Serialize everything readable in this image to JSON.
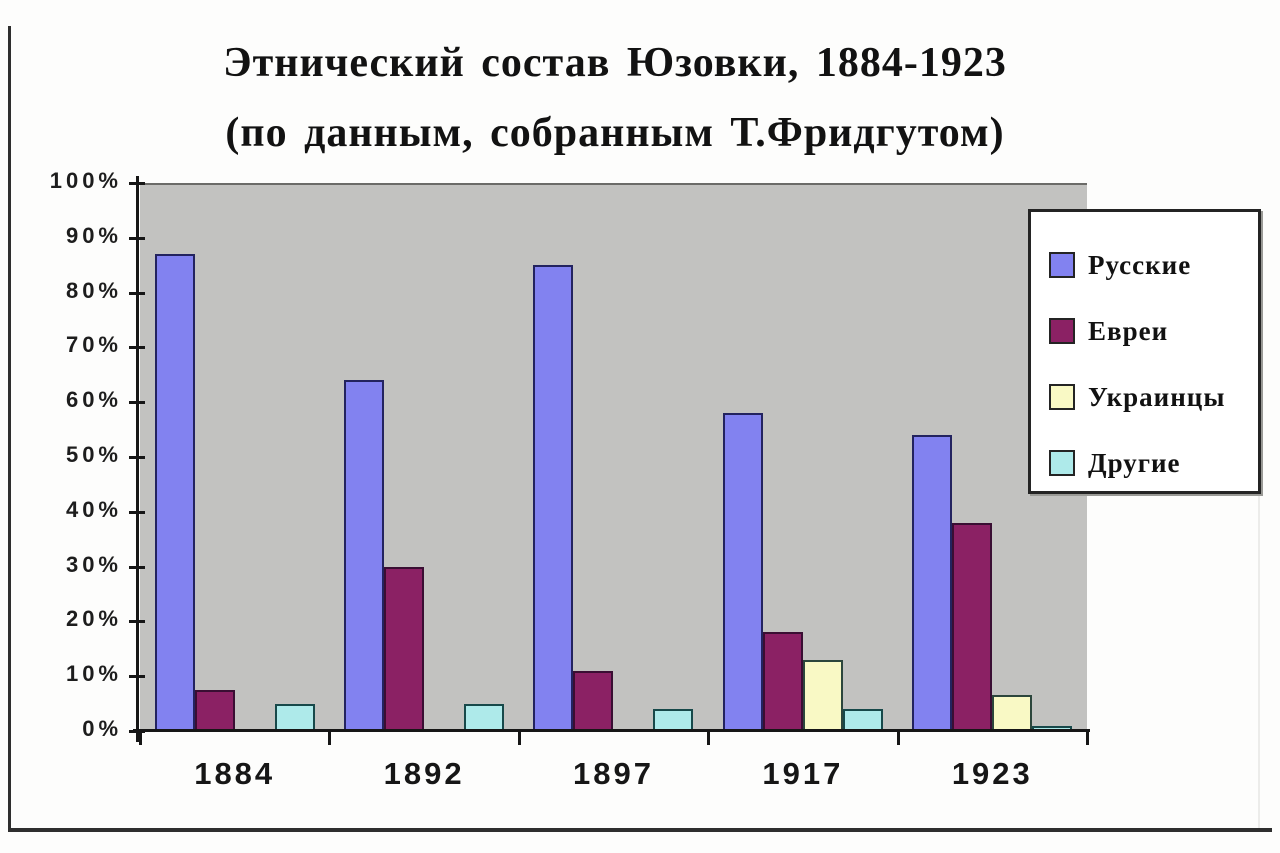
{
  "title": {
    "line1": "Этнический состав Юзовки, 1884-1923",
    "line2": "(по данным, собранным Т.Фридгутом)"
  },
  "chart_data": {
    "type": "bar",
    "title": "Этнический состав Юзовки, 1884-1923 (по данным, собранным Т.Фридгутом)",
    "categories": [
      "1884",
      "1892",
      "1897",
      "1917",
      "1923"
    ],
    "series": [
      {
        "name": "Русские",
        "color": "#8282f0",
        "border_color": "#23235f",
        "values": [
          87,
          64,
          85,
          58,
          54
        ]
      },
      {
        "name": "Евреи",
        "color": "#8b2164",
        "border_color": "#3a0e33",
        "values": [
          7.5,
          30,
          11,
          18,
          38
        ]
      },
      {
        "name": "Украинцы",
        "color": "#f9f9c5",
        "border_color": "#2c463c",
        "values": [
          0,
          0,
          0,
          13,
          6.5
        ]
      },
      {
        "name": "Другие",
        "color": "#aeeaea",
        "border_color": "#17494a",
        "values": [
          5,
          5,
          4,
          4,
          1
        ]
      }
    ],
    "xlabel": "",
    "ylabel": "",
    "ylim": [
      0,
      100
    ],
    "ytick_labels": [
      "100%",
      "90%",
      "80%",
      "70%",
      "60%",
      "50%",
      "40%",
      "30%",
      "20%",
      "10%",
      "0%"
    ],
    "grid": false,
    "legend_position": "right",
    "plot_background": "#c2c2c0",
    "axis_color": "#161616"
  }
}
